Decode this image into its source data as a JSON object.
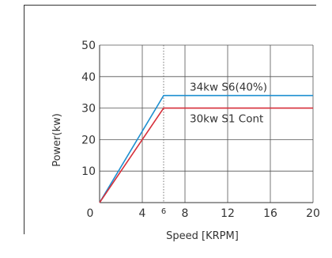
{
  "chart_data": {
    "type": "line",
    "title": "",
    "xlabel": "Speed [KRPM]",
    "ylabel": "Power(kw)",
    "xlim": [
      0,
      20
    ],
    "ylim": [
      0,
      50
    ],
    "x_ticks": [
      "0",
      "4",
      "8",
      "12",
      "16",
      "20"
    ],
    "x_extra_tick": "6",
    "y_ticks": [
      "10",
      "20",
      "30",
      "40",
      "50"
    ],
    "grid": true,
    "legend": "none (inline labels)",
    "series": [
      {
        "name": "34kw S6(40%)",
        "color": "#1e8fd0",
        "points": [
          [
            0,
            0
          ],
          [
            6,
            34
          ],
          [
            20,
            34
          ]
        ]
      },
      {
        "name": "30kw S1 Cont",
        "color": "#d62f3a",
        "points": [
          [
            0,
            0
          ],
          [
            6,
            30
          ],
          [
            20,
            30
          ]
        ]
      }
    ]
  }
}
